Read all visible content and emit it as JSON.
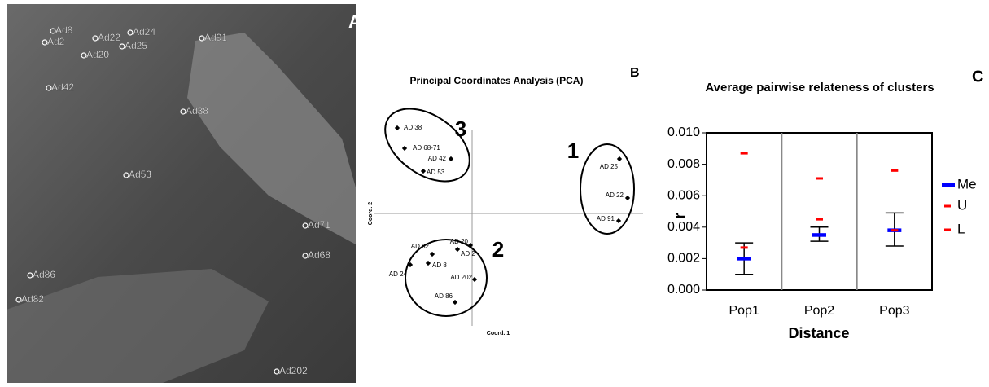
{
  "map": {
    "panel_label": "A",
    "sites": [
      "Ad8",
      "Ad2",
      "Ad22",
      "Ad20",
      "Ad25",
      "Ad24",
      "Ad91",
      "Ad42",
      "Ad38",
      "Ad53",
      "Ad71",
      "Ad68",
      "Ad86",
      "Ad82",
      "Ad202"
    ]
  },
  "chart_data": [
    {
      "type": "scatter",
      "panel_label": "B",
      "title": "Principal Coordinates Analysis (PCA)",
      "x_label": "Coord. 1",
      "y_label": "Coord. 2",
      "labels": [
        "AD 38",
        "AD 68-71",
        "AD 42",
        "AD 53",
        "AD 25",
        "AD 22",
        "AD 91",
        "AD 20",
        "AD 2",
        "AD 82",
        "AD 8",
        "AD 24",
        "AD 202",
        "AD 86"
      ],
      "x": [
        -0.92,
        -0.83,
        -0.26,
        -0.6,
        1.81,
        1.91,
        1.8,
        -0.02,
        -0.18,
        -0.49,
        -0.54,
        -0.76,
        0.03,
        -0.21
      ],
      "y": [
        1.05,
        0.8,
        0.67,
        0.52,
        0.67,
        0.19,
        -0.09,
        -0.39,
        -0.44,
        -0.5,
        -0.61,
        -0.63,
        -0.81,
        -1.09
      ],
      "xlim": [
        -1.2,
        2.1
      ],
      "ylim": [
        -1.38,
        1.32
      ],
      "clusters": [
        "3",
        "1",
        "2"
      ],
      "color": "#000000"
    },
    {
      "type": "errorbar",
      "panel_label": "C",
      "title": "Average pairwise relateness of clusters",
      "x_label": "Distance",
      "y_label": "r",
      "categories": [
        "Pop1",
        "Pop2",
        "Pop3"
      ],
      "series": [
        {
          "name": "Me",
          "color": "#0000ff",
          "values": [
            0.002,
            0.0035,
            0.0038
          ]
        },
        {
          "name": "U",
          "color": "#ff0000",
          "values": [
            0.0087,
            0.0071,
            0.0076
          ]
        },
        {
          "name": "L",
          "color": "#ff0000",
          "values": [
            0.0027,
            0.0045,
            0.0038
          ]
        }
      ],
      "error_low": [
        0.001,
        0.0031,
        0.0028
      ],
      "error_high": [
        0.003,
        0.004,
        0.0049
      ],
      "ylim": [
        0,
        0.01
      ],
      "yticks": [
        {
          "value": 0,
          "label": "0.000"
        },
        {
          "value": 0.002,
          "label": "0.002"
        },
        {
          "value": 0.004,
          "label": "0.004"
        },
        {
          "value": 0.006,
          "label": "0.006"
        },
        {
          "value": 0.008,
          "label": "0.008"
        },
        {
          "value": 0.01,
          "label": "0.010"
        }
      ],
      "grid": true
    }
  ]
}
